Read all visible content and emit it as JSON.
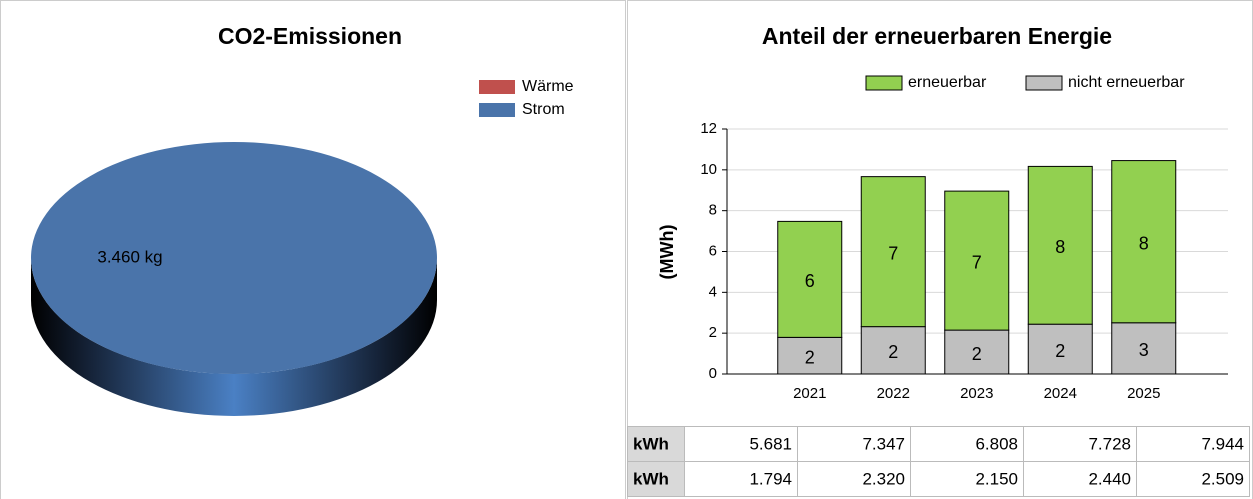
{
  "chart_data": [
    {
      "type": "pie",
      "title": "CO2-Emissionen",
      "categories": [
        "Wärme",
        "Strom"
      ],
      "values": [
        0,
        3460
      ],
      "value_labels": [
        null,
        "3.460 kg"
      ],
      "colors": [
        "#c0504d",
        "#4a74aa"
      ]
    },
    {
      "type": "stacked_bar",
      "title": "Anteil der erneuerbaren Energie",
      "ylabel": "(MWh)",
      "categories": [
        "2021",
        "2022",
        "2023",
        "2024",
        "2025"
      ],
      "series": [
        {
          "name": "erneuerbar",
          "color": "#92d050",
          "values": [
            5.681,
            7.347,
            6.808,
            7.728,
            7.944
          ],
          "value_labels": [
            "6",
            "7",
            "7",
            "8",
            "8"
          ]
        },
        {
          "name": "nicht erneuerbar",
          "color": "#bfbfbf",
          "values": [
            1.794,
            2.32,
            2.15,
            2.44,
            2.509
          ],
          "value_labels": [
            "2",
            "2",
            "2",
            "2",
            "3"
          ]
        }
      ],
      "stack_order": [
        "nicht erneuerbar",
        "erneuerbar"
      ],
      "ylim": [
        0,
        12
      ],
      "yticks": [
        0,
        2,
        4,
        6,
        8,
        10,
        12
      ],
      "grid": true
    }
  ],
  "table": {
    "rows": [
      [
        "kWh",
        "5.681",
        "7.347",
        "6.808",
        "7.728",
        "7.944"
      ],
      [
        "kWh",
        "1.794",
        "2.320",
        "2.150",
        "2.440",
        "2.509"
      ]
    ]
  }
}
